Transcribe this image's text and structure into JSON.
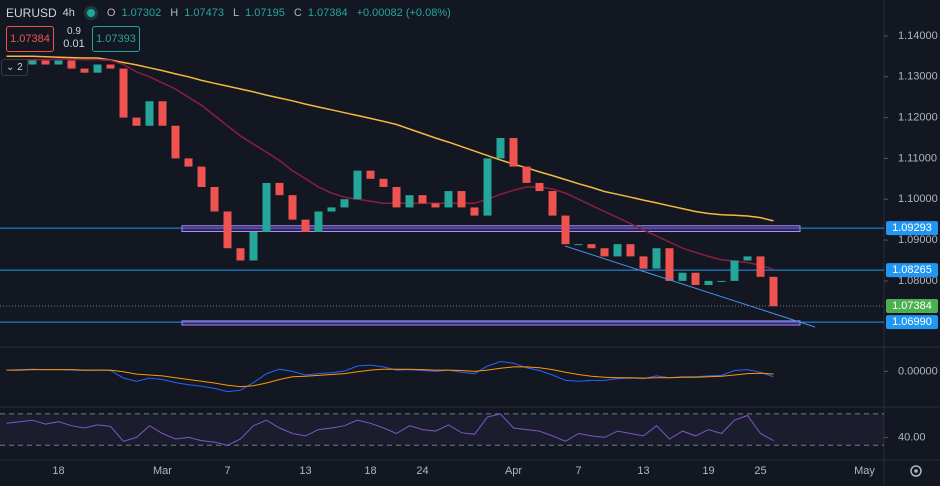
{
  "header": {
    "symbol": "EURUSD",
    "interval": "4h",
    "ohlc": [
      {
        "label": "O",
        "value": "1.07302"
      },
      {
        "label": "H",
        "value": "1.07473"
      },
      {
        "label": "L",
        "value": "1.07195"
      },
      {
        "label": "C",
        "value": "1.07384"
      }
    ],
    "change": "+0.00082 (+0.08%)"
  },
  "trade": {
    "sell": "1.07384",
    "spread_top": "0.9",
    "spread_bottom": "0.01",
    "buy": "1.07393"
  },
  "indicators_collapsed": "2",
  "chart_data": [
    {
      "type": "candle",
      "categories": [
        null,
        null,
        null,
        null,
        "18",
        null,
        null,
        null,
        null,
        null,
        null,
        null,
        "Mar",
        null,
        null,
        null,
        null,
        "7",
        null,
        null,
        null,
        null,
        null,
        "13",
        null,
        null,
        null,
        null,
        "18",
        null,
        null,
        null,
        "24",
        null,
        null,
        null,
        null,
        null,
        null,
        "Apr",
        null,
        null,
        null,
        null,
        "7",
        null,
        null,
        null,
        null,
        "13",
        null,
        null,
        null,
        null,
        "19",
        null,
        null,
        null,
        "25",
        null,
        null,
        null,
        null,
        null,
        null,
        null,
        "May",
        null
      ],
      "values": [
        1.132,
        1.133,
        1.134,
        1.133,
        1.134,
        1.132,
        1.131,
        1.133,
        1.132,
        1.12,
        1.118,
        1.124,
        1.118,
        1.11,
        1.108,
        1.103,
        1.097,
        1.088,
        1.085,
        1.092,
        1.104,
        1.101,
        1.095,
        1.092,
        1.097,
        1.098,
        1.1,
        1.107,
        1.105,
        1.103,
        1.098,
        1.101,
        1.099,
        1.098,
        1.102,
        1.098,
        1.096,
        1.11,
        1.115,
        1.108,
        1.104,
        1.102,
        1.096,
        1.089,
        1.089,
        1.088,
        1.086,
        1.089,
        1.086,
        1.083,
        1.088,
        1.08,
        1.082,
        1.079,
        1.08,
        1.08,
        1.085,
        1.086,
        1.081,
        1.0738,
        null,
        null,
        null,
        null,
        null,
        null,
        null,
        null
      ],
      "up_color": "#26a69a",
      "down_color": "#ef5350",
      "lines": [
        {
          "color": "#f5b942",
          "values": [
            1.135,
            1.135,
            1.135,
            1.1349,
            1.1348,
            1.1347,
            1.1346,
            1.1346,
            1.1341,
            1.1335,
            1.1329,
            1.1322,
            1.1315,
            1.1307,
            1.13,
            1.1291,
            1.1284,
            1.1277,
            1.127,
            1.1263,
            1.1255,
            1.1248,
            1.1241,
            1.1233,
            1.1226,
            1.1219,
            1.1212,
            1.1205,
            1.1198,
            1.1191,
            1.1183,
            1.1172,
            1.1161,
            1.115,
            1.114,
            1.1129,
            1.1118,
            1.1107,
            1.1096,
            1.1086,
            1.1077,
            1.1067,
            1.1058,
            1.1048,
            1.1038,
            1.1029,
            1.1019,
            1.1012,
            1.1005,
            1.0998,
            1.0991,
            1.0984,
            1.0977,
            1.097,
            1.0965,
            1.0962,
            1.0961,
            1.0959,
            1.0955,
            1.0947,
            null,
            null,
            null,
            null,
            null,
            null,
            null,
            null
          ]
        },
        {
          "color": "#8b1e3f",
          "values": [
            1.134,
            1.1341,
            1.1342,
            1.1342,
            1.1343,
            1.1343,
            1.1342,
            1.1342,
            1.134,
            1.133,
            1.1312,
            1.13,
            1.1285,
            1.127,
            1.125,
            1.123,
            1.1205,
            1.118,
            1.1155,
            1.1135,
            1.1115,
            1.1095,
            1.107,
            1.105,
            1.103,
            1.1015,
            1.1005,
            1.1,
            1.0995,
            1.099,
            1.099,
            1.099,
            1.099,
            1.099,
            1.099,
            1.099,
            1.099,
            1.1,
            1.1012,
            1.1022,
            1.103,
            1.103,
            1.1025,
            1.1015,
            1.1,
            1.0985,
            1.097,
            1.0955,
            1.094,
            1.0925,
            1.091,
            1.0895,
            1.088,
            1.087,
            1.086,
            1.0852,
            1.0848,
            1.0845,
            1.0838,
            1.0828,
            null,
            null,
            null,
            null,
            null,
            null,
            null,
            null
          ]
        }
      ],
      "ylim": [
        1.0643,
        1.1488
      ],
      "yticks": [
        {
          "value": 1.14,
          "label": "1.14000"
        },
        {
          "value": 1.13,
          "label": "1.13000"
        },
        {
          "value": 1.12,
          "label": "1.12000"
        },
        {
          "value": 1.11,
          "label": "1.11000"
        },
        {
          "value": 1.1,
          "label": "1.10000"
        },
        {
          "value": 1.09,
          "label": "1.09000"
        },
        {
          "value": 1.08,
          "label": "1.08000"
        }
      ],
      "price_lines": [
        {
          "value": 1.09293,
          "label": "1.09293",
          "color": "#2196f3"
        },
        {
          "value": 1.08265,
          "label": "1.08265",
          "color": "#2196f3"
        },
        {
          "value": 1.0699,
          "label": "1.06990",
          "color": "#2196f3"
        }
      ],
      "last_price": {
        "value": 1.07384,
        "label": "1.07384",
        "color": "#4caf50"
      },
      "zones": [
        {
          "from": 1.0921,
          "to": 1.0935
        },
        {
          "from": 1.0692,
          "to": 1.0702
        }
      ]
    },
    {
      "type": "line",
      "ylim": [
        -0.0075,
        0.005
      ],
      "yticks": [
        {
          "value": 0,
          "label": "0.00000"
        }
      ],
      "series": [
        {
          "color": "#2962ff",
          "values": [
            0.0003,
            0.0004,
            0.0005,
            0.0004,
            0.0004,
            0.0003,
            0.0002,
            0.0003,
            0.0002,
            -0.0015,
            -0.0022,
            -0.0015,
            -0.0018,
            -0.0025,
            -0.003,
            -0.0033,
            -0.0038,
            -0.0045,
            -0.0042,
            -0.0025,
            -0.0005,
            0.0005,
            0,
            -0.0008,
            -0.0005,
            -0.0003,
            0.0001,
            0.0012,
            0.0014,
            0.001,
            0.0003,
            0.0004,
            0.0002,
            0,
            0.0003,
            -0.0002,
            -0.0005,
            0.0012,
            0.0022,
            0.0018,
            0.0008,
            0.0002,
            -0.0008,
            -0.002,
            -0.0022,
            -0.002,
            -0.002,
            -0.0016,
            -0.0015,
            -0.0016,
            -0.001,
            -0.0014,
            -0.0012,
            -0.0012,
            -0.001,
            -0.0009,
            0.0002,
            0.0004,
            -0.0002,
            -0.0012,
            null,
            null,
            null,
            null,
            null,
            null,
            null,
            null
          ]
        },
        {
          "color": "#ff9800",
          "values": [
            0.0003,
            0.0003,
            0.0004,
            0.0004,
            0.0004,
            0.0004,
            0.0003,
            0.0003,
            0.0003,
            -0.0001,
            -0.0006,
            -0.0008,
            -0.001,
            -0.0014,
            -0.0018,
            -0.0022,
            -0.0026,
            -0.0031,
            -0.0034,
            -0.0032,
            -0.0026,
            -0.0018,
            -0.0012,
            -0.0011,
            -0.0009,
            -0.0007,
            -0.0005,
            -0.0001,
            0.0003,
            0.0005,
            0.0005,
            0.0005,
            0.0004,
            0.0003,
            0.0003,
            0.0002,
            0,
            0.0003,
            0.0007,
            0.001,
            0.001,
            0.0008,
            0.0004,
            -0.0002,
            -0.0007,
            -0.0011,
            -0.0013,
            -0.0014,
            -0.0014,
            -0.0015,
            -0.0014,
            -0.0014,
            -0.0013,
            -0.0013,
            -0.0012,
            -0.0011,
            -0.0008,
            -0.0005,
            -0.0004,
            -0.0006,
            null,
            null,
            null,
            null,
            null,
            null,
            null,
            null
          ]
        }
      ]
    },
    {
      "type": "line",
      "ylim": [
        13.75,
        76.25
      ],
      "yticks": [
        {
          "value": 40,
          "label": "40.00"
        }
      ],
      "levels": [
        70,
        30
      ],
      "series": [
        {
          "color": "#7e57c2",
          "values": [
            58,
            60,
            62,
            57,
            60,
            55,
            52,
            56,
            54,
            35,
            40,
            55,
            45,
            38,
            40,
            36,
            34,
            30,
            38,
            55,
            62,
            52,
            45,
            42,
            50,
            52,
            55,
            62,
            58,
            52,
            45,
            55,
            50,
            48,
            56,
            46,
            44,
            66,
            70,
            52,
            50,
            48,
            42,
            35,
            45,
            42,
            40,
            48,
            45,
            42,
            55,
            38,
            48,
            42,
            50,
            45,
            62,
            68,
            45,
            36,
            null,
            null,
            null,
            null,
            null,
            null,
            null,
            null
          ]
        }
      ]
    }
  ]
}
